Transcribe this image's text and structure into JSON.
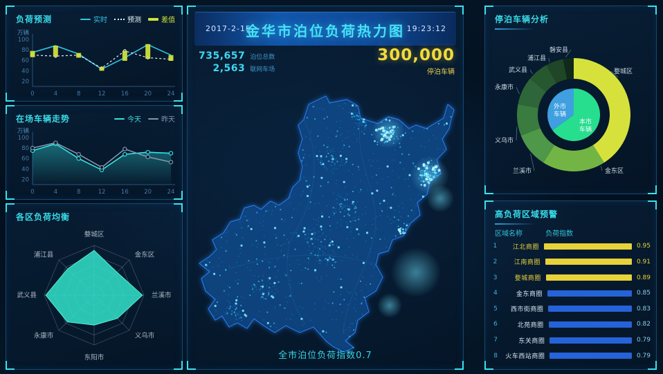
{
  "header": {
    "date": "2017-2-15",
    "title": "金华市泊位负荷热力图",
    "time": "19:23:12"
  },
  "stats": {
    "berth_total": "735,657",
    "berth_total_label": "泊位总数",
    "connected_lots": "2,563",
    "connected_lots_label": "联网车场",
    "parked_vehicles": "300,000",
    "parked_vehicles_label": "停泊车辆"
  },
  "map": {
    "caption": "全市泊位负荷指数0.7"
  },
  "colors": {
    "accent_cyan": "#38dce8",
    "accent_yellow": "#e8d23a",
    "accent_blue_bar": "#2563d8",
    "panel_border": "#15486e",
    "corner": "#38e2ee",
    "map_outline": "#2178e8",
    "heat_dot": "#7feaff"
  },
  "chart_data": [
    {
      "type": "line",
      "title": "负荷预测",
      "unit": "万辆",
      "x": [
        0,
        4,
        8,
        12,
        16,
        20,
        24
      ],
      "ylim": [
        10,
        100
      ],
      "yticks": [
        20,
        40,
        60,
        80,
        100
      ],
      "legend_position": "top-right",
      "grid": false,
      "series": [
        {
          "name": "实时",
          "kind": "line",
          "style": "solid",
          "color": "#2fc8e6",
          "values": [
            75,
            88,
            72,
            43,
            65,
            90,
            70
          ]
        },
        {
          "name": "预测",
          "kind": "line",
          "style": "dashed",
          "color": "#e6f2f8",
          "markers": true,
          "values": [
            70,
            68,
            70,
            45,
            78,
            65,
            62
          ]
        },
        {
          "name": "差值",
          "kind": "bar-range",
          "color": "#cde03c",
          "ranges": [
            [
              66,
              78
            ],
            [
              67,
              88
            ],
            [
              65,
              74
            ],
            [
              40,
              47
            ],
            [
              59,
              78
            ],
            [
              63,
              91
            ],
            [
              59,
              70
            ]
          ]
        }
      ]
    },
    {
      "type": "line",
      "title": "在场车辆走势",
      "unit": "万辆",
      "x": [
        0,
        4,
        8,
        12,
        16,
        20,
        24
      ],
      "ylim": [
        10,
        100
      ],
      "yticks": [
        20,
        40,
        60,
        80,
        100
      ],
      "legend_position": "top-right",
      "grid": false,
      "series": [
        {
          "name": "今天",
          "kind": "line",
          "style": "solid",
          "color": "#35e2e2",
          "area": true,
          "markers": true,
          "values": [
            75,
            88,
            60,
            38,
            68,
            72,
            70
          ]
        },
        {
          "name": "昨天",
          "kind": "line",
          "style": "solid",
          "color": "#8097ad",
          "markers": true,
          "values": [
            80,
            90,
            68,
            43,
            78,
            63,
            53
          ]
        }
      ]
    },
    {
      "type": "radar",
      "title": "各区负荷均衡",
      "max": 1,
      "levels": 5,
      "categories": [
        "婺城区",
        "金东区",
        "兰溪市",
        "义乌市",
        "东阳市",
        "永康市",
        "武义县",
        "浦江县"
      ],
      "values": [
        0.9,
        0.65,
        0.97,
        0.66,
        0.6,
        0.76,
        0.97,
        0.75
      ],
      "fill_color": "#31dcc6"
    },
    {
      "type": "pie",
      "title": "停泊车辆分析",
      "outer": [
        {
          "label": "婺城区",
          "value": 41,
          "color": "#d6e23b"
        },
        {
          "label": "金东区",
          "value": 18,
          "color": "#72b544"
        },
        {
          "label": "兰溪市",
          "value": 10,
          "color": "#4f9749"
        },
        {
          "label": "义乌市",
          "value": 9,
          "color": "#3a7b40"
        },
        {
          "label": "永康市",
          "value": 8,
          "color": "#2e6539"
        },
        {
          "label": "武义县",
          "value": 6,
          "color": "#27572f"
        },
        {
          "label": "浦江县",
          "value": 5,
          "color": "#1e4627"
        },
        {
          "label": "磐安县",
          "value": 3,
          "color": "#10291a"
        }
      ],
      "inner": [
        {
          "label": "本市车辆",
          "value": 65,
          "color": "#27de8f"
        },
        {
          "label": "外市车辆",
          "value": 35,
          "color": "#3f9fe0"
        }
      ]
    },
    {
      "type": "bar",
      "title": "高负荷区域预警",
      "col_name": "区域名称",
      "col_value": "负荷指数",
      "rows": [
        {
          "rank": 1,
          "name": "江北商圈",
          "value": 0.95,
          "tier": "high"
        },
        {
          "rank": 2,
          "name": "江南商圈",
          "value": 0.91,
          "tier": "high"
        },
        {
          "rank": 3,
          "name": "婺城商圈",
          "value": 0.89,
          "tier": "high"
        },
        {
          "rank": 4,
          "name": "金东商圈",
          "value": 0.85,
          "tier": "normal"
        },
        {
          "rank": 5,
          "name": "西市街商圈",
          "value": 0.83,
          "tier": "normal"
        },
        {
          "rank": 6,
          "name": "北苑商圈",
          "value": 0.82,
          "tier": "normal"
        },
        {
          "rank": 7,
          "name": "东关商圈",
          "value": 0.79,
          "tier": "normal"
        },
        {
          "rank": 8,
          "name": "火车西站商圈",
          "value": 0.79,
          "tier": "normal"
        }
      ],
      "bar_colors": {
        "high": "#e8d23a",
        "normal": "#2563d8"
      },
      "text_colors": {
        "high": "#e8d23a",
        "normal_name": "#d6e4f0",
        "normal_value": "#8fcbe8"
      }
    }
  ]
}
